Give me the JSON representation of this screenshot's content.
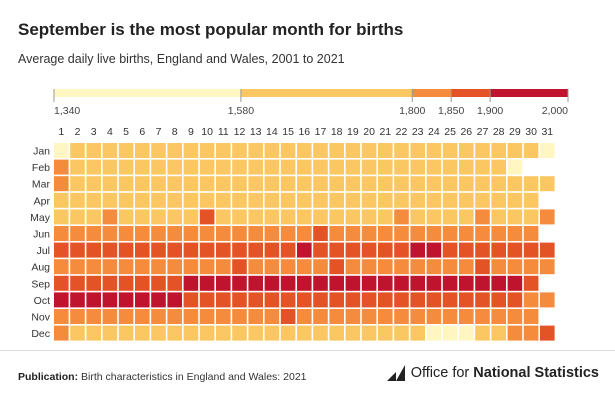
{
  "title": "September is the most popular month for births",
  "subtitle": "Average daily live births, England and Wales, 2001 to 2021",
  "footer": {
    "label": "Publication:",
    "text": "Birth characteristics in England and Wales: 2021"
  },
  "publisher": {
    "prefix": "Office for ",
    "bold": "National Statistics"
  },
  "chart_data": {
    "type": "heatmap",
    "title": "September is the most popular month for births",
    "subtitle": "Average daily live births, England and Wales, 2001 to 2021",
    "x_categories": [
      "1",
      "2",
      "3",
      "4",
      "5",
      "6",
      "7",
      "8",
      "9",
      "10",
      "11",
      "12",
      "13",
      "14",
      "15",
      "16",
      "17",
      "18",
      "19",
      "20",
      "21",
      "22",
      "23",
      "24",
      "25",
      "26",
      "27",
      "28",
      "29",
      "30",
      "31"
    ],
    "y_categories": [
      "Jan",
      "Feb",
      "Mar",
      "Apr",
      "May",
      "Jun",
      "Jul",
      "Aug",
      "Sep",
      "Oct",
      "Nov",
      "Dec"
    ],
    "legend": {
      "breaks": [
        1340,
        1580,
        1800,
        1850,
        1900,
        2000
      ],
      "labels": [
        "1,340",
        "1,580",
        "1,800",
        "1,850",
        "1,900",
        "2,000"
      ],
      "colors": [
        "#fff6c2",
        "#fbc763",
        "#f58b3d",
        "#e45326",
        "#c0142e"
      ]
    },
    "values": [
      [
        1400,
        1640,
        1720,
        1740,
        1720,
        1740,
        1740,
        1720,
        1740,
        1680,
        1700,
        1680,
        1700,
        1720,
        1680,
        1720,
        1740,
        1720,
        1740,
        1700,
        1720,
        1680,
        1720,
        1700,
        1700,
        1680,
        1700,
        1720,
        1640,
        1600,
        1560
      ],
      [
        1820,
        1720,
        1700,
        1740,
        1740,
        1720,
        1700,
        1680,
        1720,
        1700,
        1720,
        1720,
        1700,
        1740,
        1760,
        1720,
        1720,
        1740,
        1720,
        1700,
        1720,
        1680,
        1720,
        1700,
        1720,
        1700,
        1700,
        1740,
        1480,
        null,
        null
      ],
      [
        1820,
        1700,
        1740,
        1720,
        1700,
        1720,
        1740,
        1720,
        1720,
        1740,
        1720,
        1700,
        1700,
        1720,
        1760,
        1720,
        1740,
        1720,
        1700,
        1720,
        1720,
        1700,
        1720,
        1740,
        1720,
        1700,
        1720,
        1720,
        1700,
        1700,
        1640
      ],
      [
        1740,
        1720,
        1700,
        1720,
        1740,
        1700,
        1740,
        1720,
        1700,
        1740,
        1720,
        1700,
        1720,
        1720,
        1700,
        1720,
        1740,
        1700,
        1720,
        1740,
        1720,
        1700,
        1740,
        1720,
        1720,
        1740,
        1700,
        1720,
        1720,
        1700,
        null
      ],
      [
        1740,
        1700,
        1720,
        1820,
        1720,
        1720,
        1700,
        1740,
        1720,
        1870,
        1720,
        1740,
        1720,
        1720,
        1760,
        1740,
        1720,
        1740,
        1720,
        1700,
        1740,
        1830,
        1720,
        1740,
        1760,
        1720,
        1820,
        1720,
        1720,
        1740,
        1820
      ],
      [
        1830,
        1820,
        1840,
        1830,
        1820,
        1830,
        1840,
        1820,
        1840,
        1820,
        1830,
        1840,
        1820,
        1830,
        1840,
        1830,
        1880,
        1830,
        1820,
        1840,
        1830,
        1820,
        1830,
        1840,
        1830,
        1820,
        1830,
        1840,
        1830,
        1820,
        null
      ],
      [
        1860,
        1880,
        1870,
        1880,
        1870,
        1860,
        1870,
        1880,
        1870,
        1860,
        1870,
        1880,
        1870,
        1860,
        1880,
        1920,
        1870,
        1880,
        1870,
        1860,
        1880,
        1860,
        1920,
        1920,
        1870,
        1880,
        1870,
        1860,
        1880,
        1870,
        1870
      ],
      [
        1830,
        1840,
        1830,
        1840,
        1830,
        1840,
        1830,
        1840,
        1830,
        1840,
        1830,
        1860,
        1830,
        1840,
        1830,
        1840,
        1830,
        1850,
        1840,
        1830,
        1840,
        1830,
        1840,
        1830,
        1840,
        1830,
        1880,
        1840,
        1830,
        1840,
        1830
      ],
      [
        1870,
        1880,
        1880,
        1890,
        1880,
        1870,
        1880,
        1880,
        1920,
        1920,
        1920,
        1920,
        1920,
        1920,
        1920,
        1920,
        1920,
        1920,
        1920,
        1920,
        1920,
        1910,
        1930,
        1920,
        1920,
        1920,
        1920,
        1920,
        1920,
        1870,
        null
      ],
      [
        1960,
        1940,
        1920,
        1920,
        1920,
        1920,
        1920,
        1920,
        1880,
        1880,
        1870,
        1880,
        1870,
        1860,
        1870,
        1880,
        1870,
        1870,
        1870,
        1880,
        1870,
        1860,
        1870,
        1880,
        1870,
        1860,
        1870,
        1860,
        1850,
        1830,
        1830
      ],
      [
        1830,
        1820,
        1830,
        1830,
        1820,
        1840,
        1830,
        1830,
        1820,
        1830,
        1830,
        1820,
        1830,
        1830,
        1880,
        1830,
        1820,
        1830,
        1830,
        1830,
        1830,
        1820,
        1830,
        1830,
        1820,
        1830,
        1830,
        1830,
        1830,
        1830,
        null
      ],
      [
        1820,
        1760,
        1740,
        1720,
        1740,
        1720,
        1740,
        1720,
        1740,
        1700,
        1720,
        1700,
        1700,
        1740,
        1720,
        1700,
        1740,
        1720,
        1700,
        1720,
        1740,
        1700,
        1640,
        1460,
        1420,
        1560,
        1720,
        1700,
        1820,
        1830,
        1880
      ]
    ]
  }
}
